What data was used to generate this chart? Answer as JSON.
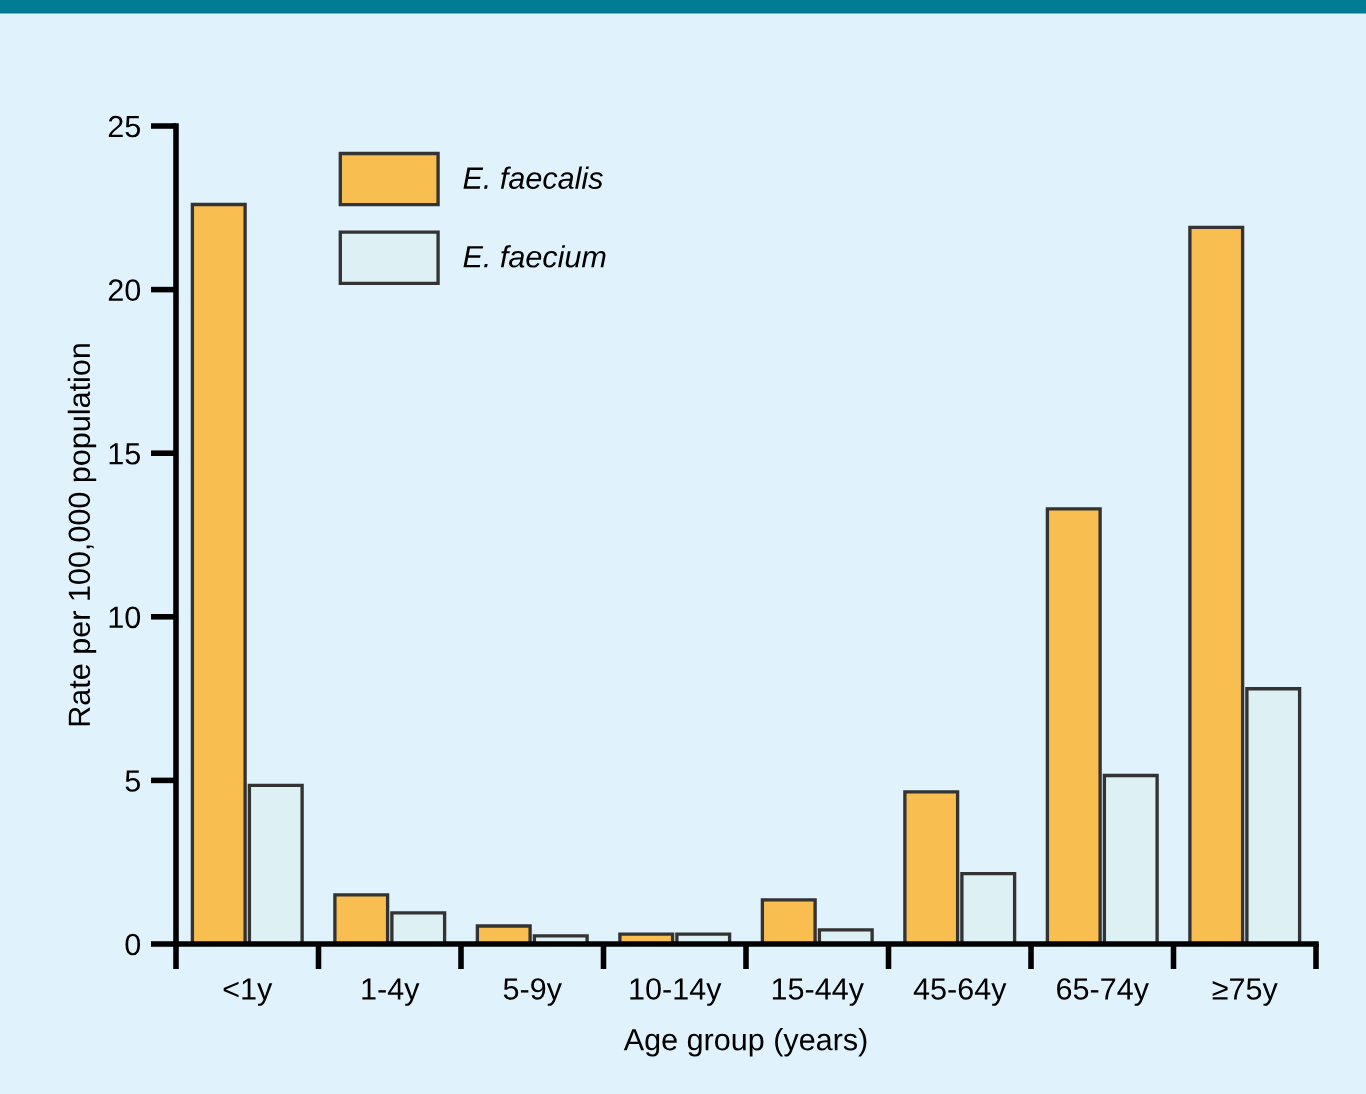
{
  "chart_data": {
    "type": "bar",
    "xlabel": "Age group (years)",
    "ylabel": "Rate per 100,000 population",
    "categories": [
      "<1y",
      "1-4y",
      "5-9y",
      "10-14y",
      "15-44y",
      "45-64y",
      "65-74y",
      "≥75y"
    ],
    "series": [
      {
        "name": "E. faecalis",
        "color": "#f9be50",
        "values": [
          22.6,
          1.5,
          0.55,
          0.3,
          1.35,
          4.65,
          13.3,
          21.9
        ]
      },
      {
        "name": "E. faecium",
        "color": "#ddf0f3",
        "values": [
          4.85,
          0.95,
          0.25,
          0.3,
          0.43,
          2.15,
          5.15,
          7.8
        ]
      }
    ],
    "ylim": [
      0,
      25
    ],
    "yticks": [
      0,
      5,
      10,
      15,
      20,
      25
    ],
    "legend": "top left",
    "grid": false
  }
}
